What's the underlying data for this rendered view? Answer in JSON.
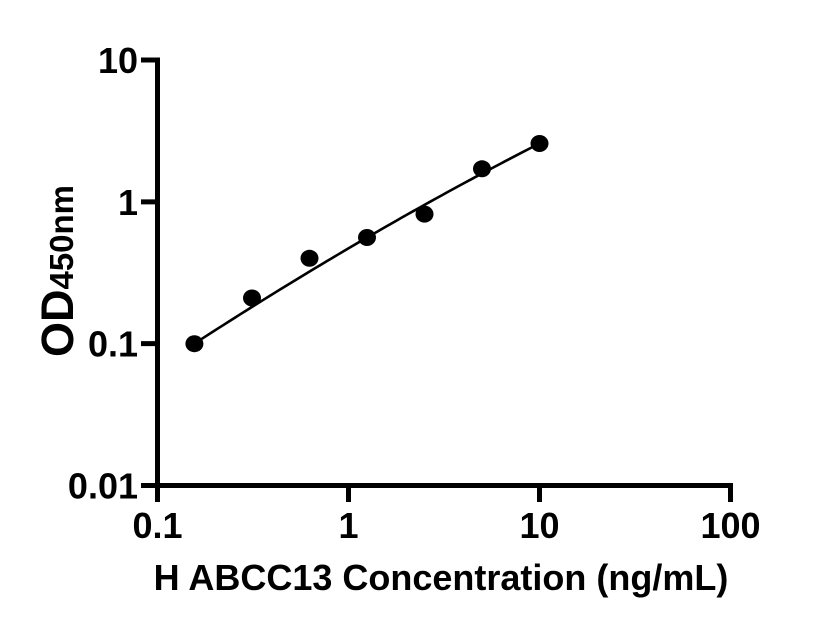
{
  "chart_data": {
    "type": "scatter",
    "title": "",
    "xlabel": "H ABCC13 Concentration (ng/mL)",
    "ylabel": "OD450nm",
    "ylabel_main": "OD",
    "ylabel_sub": "450nm",
    "x_scale": "log",
    "y_scale": "log",
    "xlim": [
      0.1,
      100
    ],
    "ylim": [
      0.01,
      10
    ],
    "x_ticks": [
      {
        "v": 0.1,
        "label": "0.1"
      },
      {
        "v": 1,
        "label": "1"
      },
      {
        "v": 10,
        "label": "10"
      },
      {
        "v": 100,
        "label": "100"
      }
    ],
    "y_ticks": [
      {
        "v": 10,
        "label": "10"
      },
      {
        "v": 1,
        "label": "1"
      },
      {
        "v": 0.1,
        "label": "0.1"
      },
      {
        "v": 0.01,
        "label": "0.01"
      }
    ],
    "series": [
      {
        "marker": "filled-circle",
        "color": "#000000",
        "x": [
          0.156,
          0.3125,
          0.625,
          1.25,
          2.5,
          5,
          10
        ],
        "y": [
          0.1,
          0.21,
          0.4,
          0.56,
          0.82,
          1.71,
          2.58
        ]
      }
    ],
    "fit_line": {
      "style": "smooth-log-log-fit",
      "color": "#000000"
    },
    "grid": false,
    "legend": "none",
    "background": "#ffffff",
    "axis_color": "#000000"
  }
}
